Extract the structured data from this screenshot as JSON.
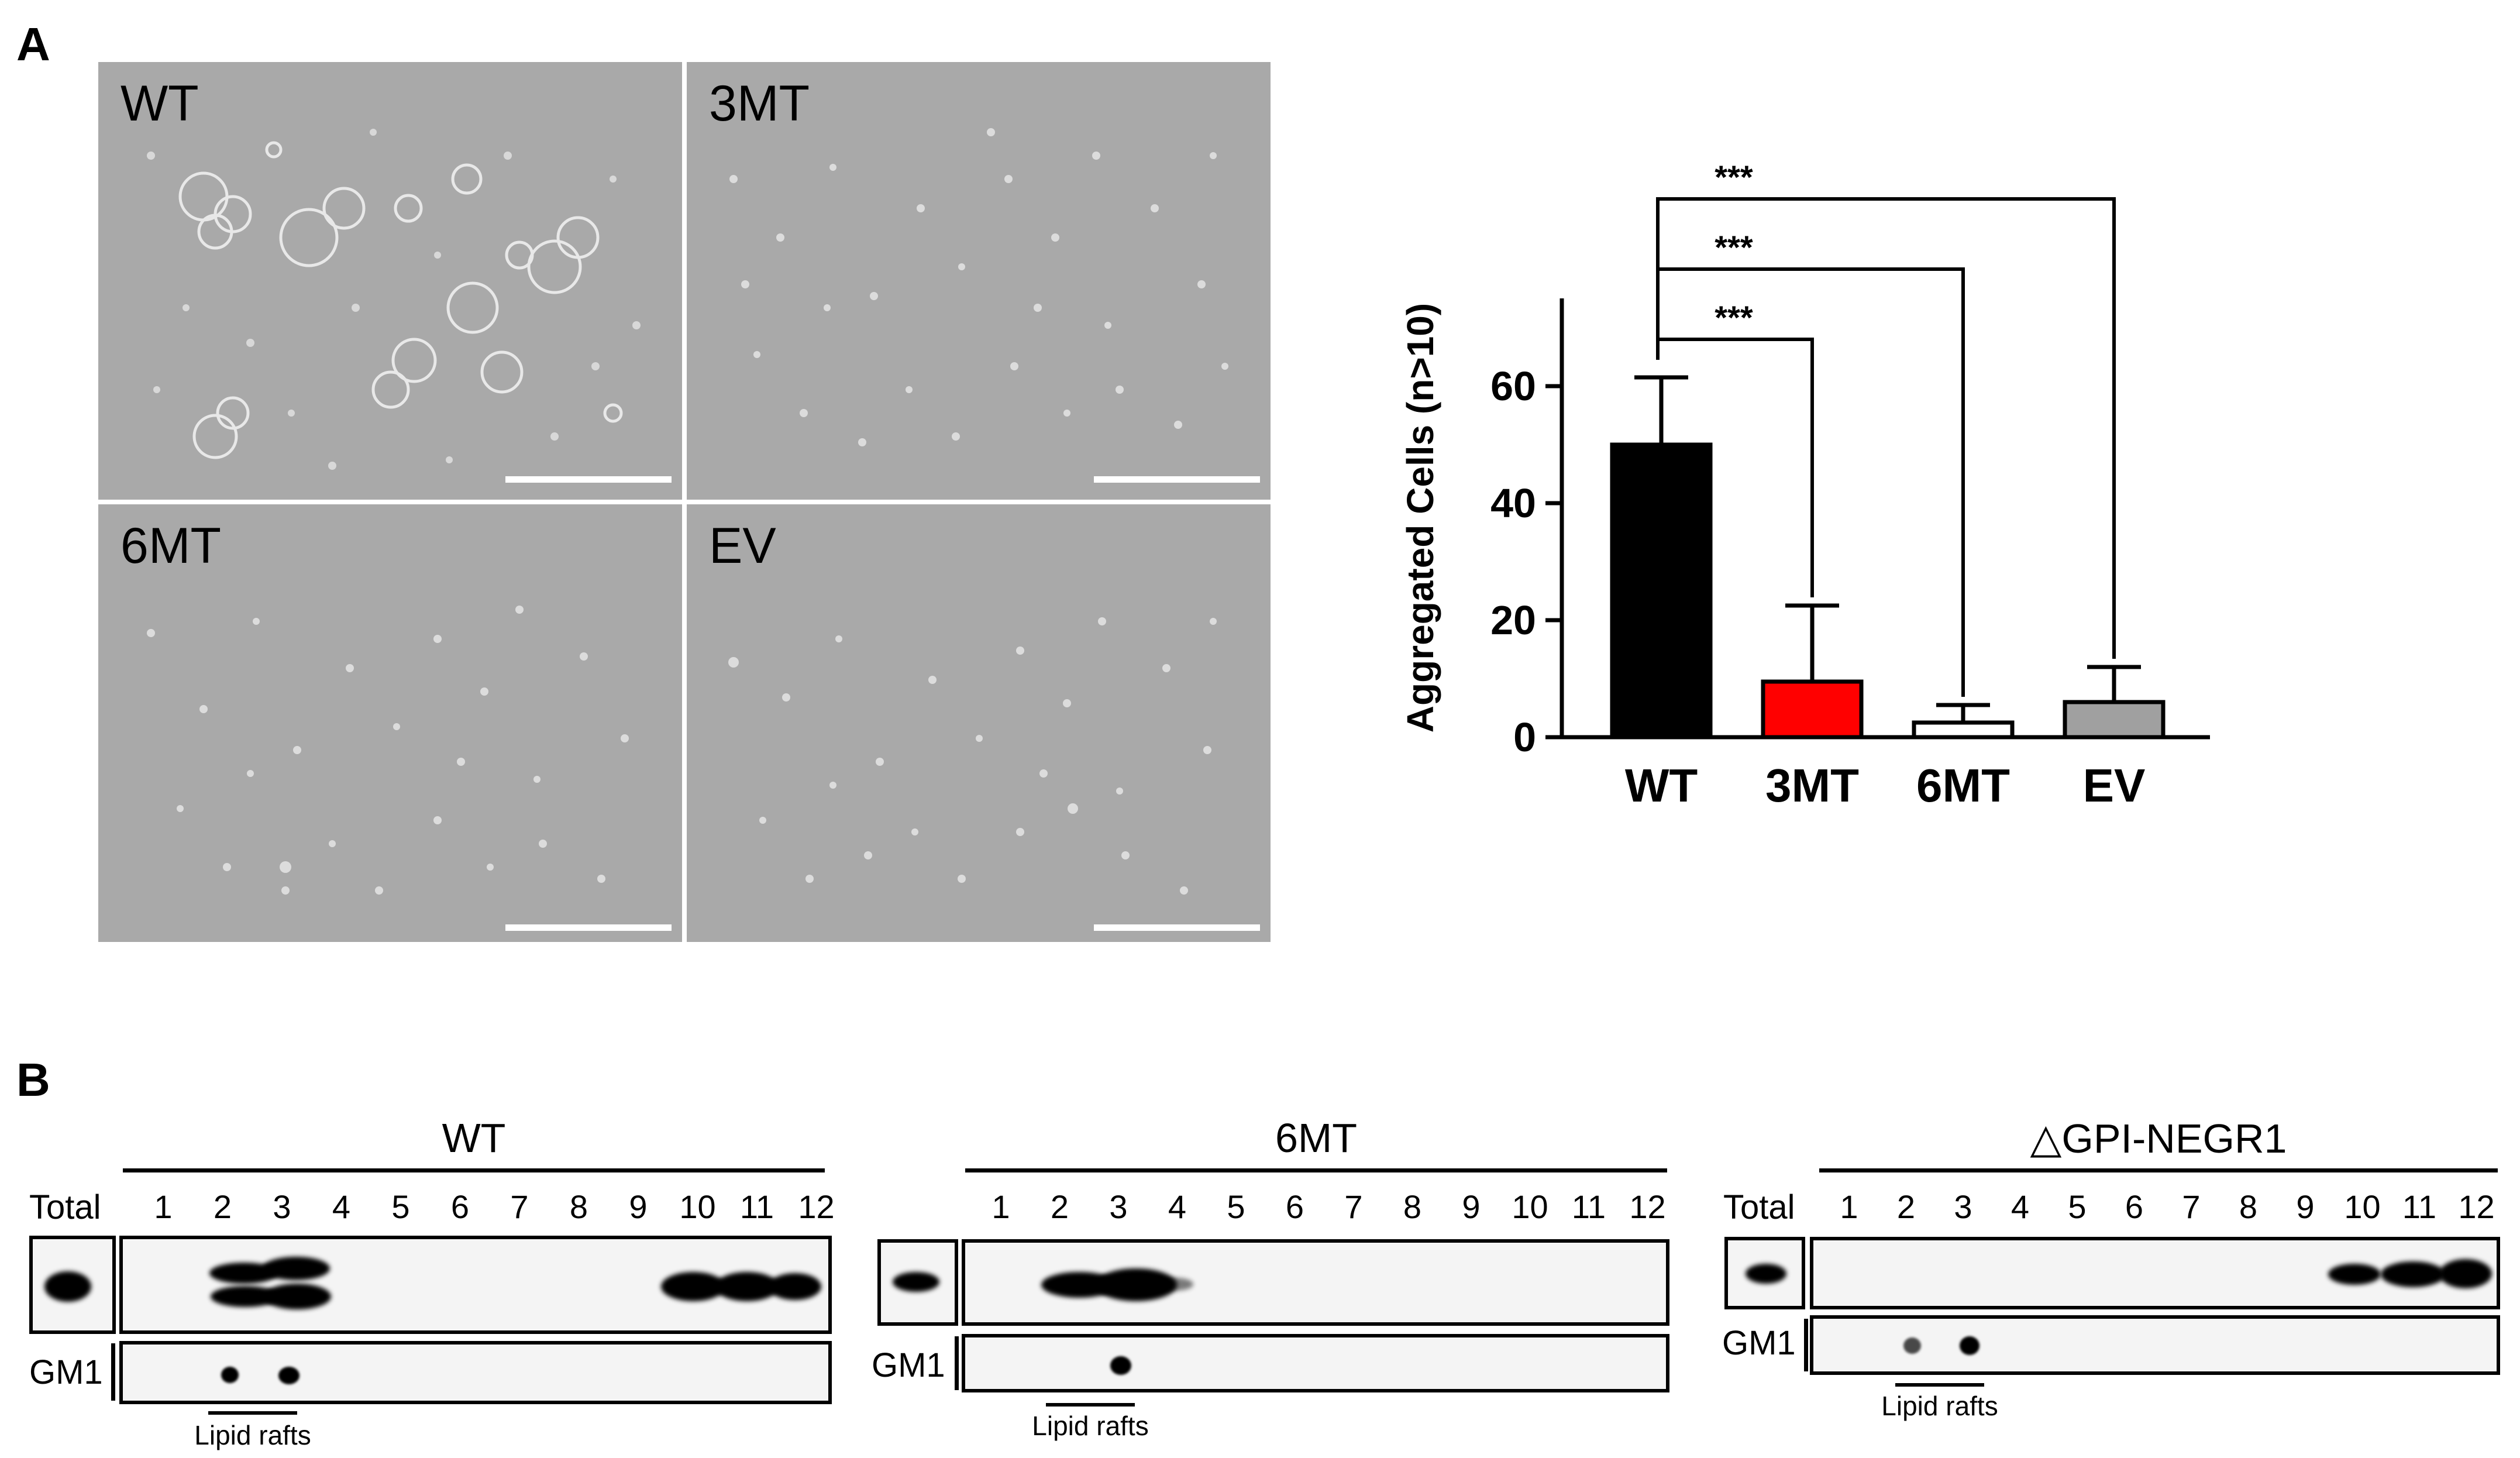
{
  "panel_a": {
    "letter": "A",
    "micrographs": [
      {
        "label": "WT"
      },
      {
        "label": "3MT"
      },
      {
        "label": "6MT"
      },
      {
        "label": "EV"
      }
    ]
  },
  "chart_data": {
    "type": "bar",
    "categories": [
      "WT",
      "3MT",
      "6MT",
      "EV"
    ],
    "values": [
      50,
      9.5,
      2.5,
      6
    ],
    "errors": [
      11.5,
      13,
      3,
      6
    ],
    "colors": [
      "#000000",
      "#ff0000",
      "#ffffff",
      "#a0a0a0"
    ],
    "ylabel": "Aggregated Cells (n>10)",
    "ylim": [
      0,
      75
    ],
    "yticks": [
      0,
      20,
      40,
      60
    ],
    "ytick_labels": [
      "0",
      "20",
      "40",
      "60"
    ],
    "significance": [
      {
        "from": "WT",
        "to": "3MT",
        "label": "***"
      },
      {
        "from": "WT",
        "to": "6MT",
        "label": "***"
      },
      {
        "from": "WT",
        "to": "EV",
        "label": "***"
      }
    ]
  },
  "panel_b": {
    "letter": "B",
    "blots": [
      {
        "title": "WT",
        "total_label": "Total",
        "gm1_label": "GM1",
        "rafts_label": "Lipid rafts",
        "lanes": [
          "1",
          "2",
          "3",
          "4",
          "5",
          "6",
          "7",
          "8",
          "9",
          "10",
          "11",
          "12"
        ]
      },
      {
        "title": "6MT",
        "total_label": "",
        "gm1_label": "GM1",
        "rafts_label": "Lipid rafts",
        "lanes": [
          "1",
          "2",
          "3",
          "4",
          "5",
          "6",
          "7",
          "8",
          "9",
          "10",
          "11",
          "12"
        ]
      },
      {
        "title": "△GPI-NEGR1",
        "total_label": "Total",
        "gm1_label": "GM1",
        "rafts_label": "Lipid rafts",
        "lanes": [
          "1",
          "2",
          "3",
          "4",
          "5",
          "6",
          "7",
          "8",
          "9",
          "10",
          "11",
          "12"
        ]
      }
    ]
  }
}
